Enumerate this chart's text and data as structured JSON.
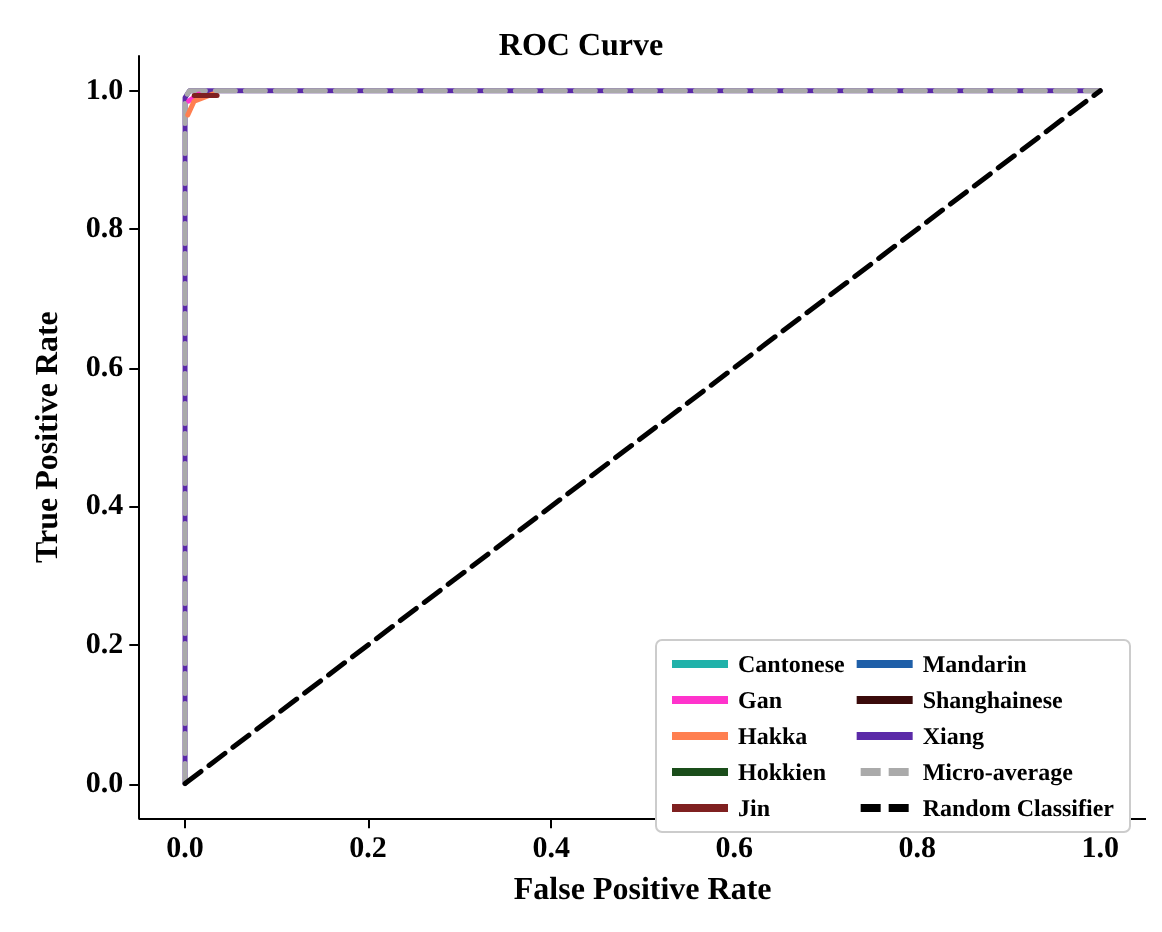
{
  "chart_data": {
    "type": "line",
    "title": "ROC Curve",
    "xlabel": "False Positive Rate",
    "ylabel": "True Positive Rate",
    "xlim": [
      -0.05,
      1.05
    ],
    "ylim": [
      -0.05,
      1.05
    ],
    "xticks": [
      {
        "value": 0,
        "label": "0.0"
      },
      0.2,
      0.4,
      0.6,
      0.8,
      {
        "value": 1,
        "label": "1.0"
      }
    ],
    "yticks": [
      {
        "value": 0,
        "label": "0.0"
      },
      0.2,
      0.4,
      0.6,
      0.8,
      {
        "value": 1,
        "label": "1.0"
      }
    ],
    "grid": false,
    "legend": "bottom right",
    "marker": "none",
    "series": [
      {
        "name": "Cantonese",
        "color": "#20b2aa"
      },
      {
        "name": "Gan",
        "color": "#ff33cc",
        "x": [
          0.004,
          0.015
        ],
        "values": [
          0.985,
          0.995
        ]
      },
      {
        "name": "Hakka",
        "color": "#ff7f50",
        "x": [
          0.003,
          0.01,
          0.03
        ],
        "values": [
          0.965,
          0.985,
          0.995
        ]
      },
      {
        "name": "Hokkien",
        "color": "#1a4d1a"
      },
      {
        "name": "Jin",
        "color": "#7f2020",
        "x": [
          0.01,
          0.035
        ],
        "values": [
          0.993,
          0.993
        ]
      },
      {
        "name": "Mandarin",
        "color": "#1f5fa8"
      },
      {
        "name": "Shanghainese",
        "color": "#3a0a0a"
      },
      {
        "name": "Xiang",
        "color": "#5b2aa8",
        "x": [
          0,
          0,
          0.005,
          1
        ],
        "values": [
          0,
          0.99,
          1,
          1
        ]
      },
      {
        "name": "Micro-average",
        "color": "#aaaaaa",
        "line_style": "dashed",
        "x": [
          0,
          0,
          0.005,
          1
        ],
        "values": [
          0,
          0.99,
          1,
          1
        ]
      },
      {
        "name": "Random Classifier",
        "color": "#000000",
        "line_style": "dashed",
        "x": [
          0,
          1
        ],
        "values": [
          0,
          1
        ]
      }
    ]
  }
}
